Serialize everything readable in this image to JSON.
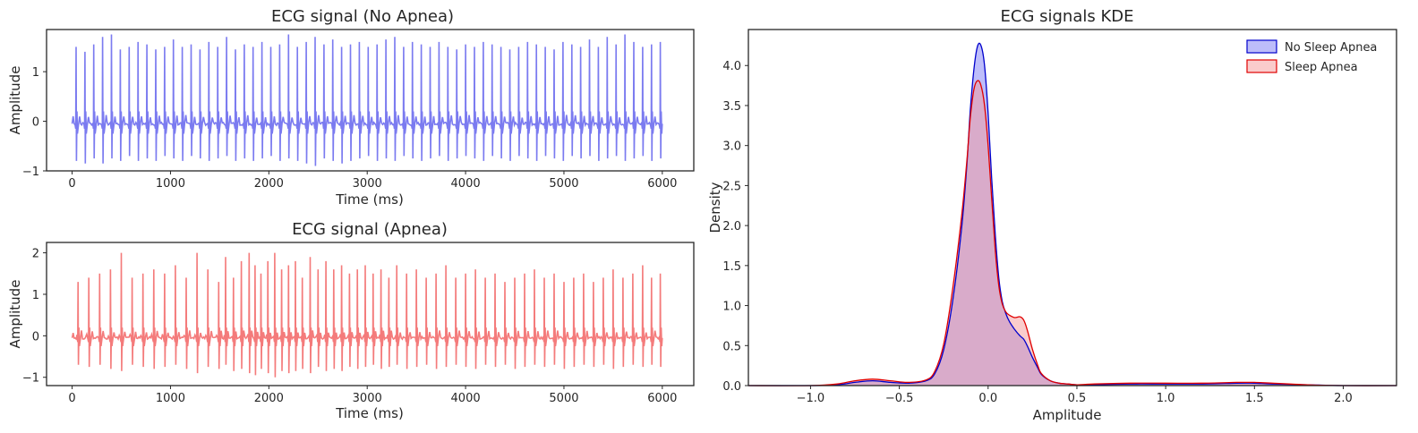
{
  "chart_data": [
    {
      "type": "line",
      "title": "ECG signal (No Apnea)",
      "xlabel": "Time (ms)",
      "ylabel": "Amplitude",
      "xlim": [
        0,
        6000
      ],
      "ylim": [
        -1,
        1.85
      ],
      "xticks": [
        "0",
        "1000",
        "2000",
        "3000",
        "4000",
        "5000",
        "6000"
      ],
      "yticks": [
        "−1",
        "0",
        "1"
      ],
      "series": [
        {
          "color": "#7b7bf0",
          "beat_times": [
            40,
            130,
            220,
            310,
            400,
            490,
            580,
            670,
            760,
            850,
            940,
            1030,
            1120,
            1210,
            1300,
            1390,
            1480,
            1570,
            1660,
            1750,
            1840,
            1930,
            2020,
            2110,
            2200,
            2290,
            2380,
            2470,
            2560,
            2650,
            2740,
            2830,
            2920,
            3010,
            3100,
            3190,
            3280,
            3370,
            3460,
            3550,
            3640,
            3730,
            3820,
            3910,
            4000,
            4090,
            4180,
            4270,
            4360,
            4450,
            4540,
            4630,
            4720,
            4810,
            4900,
            4990,
            5080,
            5170,
            5260,
            5350,
            5440,
            5530,
            5620,
            5710,
            5800,
            5890,
            5980
          ],
          "peaks": [
            1.5,
            1.4,
            1.55,
            1.7,
            1.75,
            1.45,
            1.5,
            1.6,
            1.55,
            1.45,
            1.5,
            1.65,
            1.5,
            1.55,
            1.45,
            1.6,
            1.5,
            1.7,
            1.45,
            1.55,
            1.5,
            1.6,
            1.5,
            1.55,
            1.75,
            1.5,
            1.6,
            1.7,
            1.55,
            1.65,
            1.5,
            1.55,
            1.6,
            1.5,
            1.55,
            1.65,
            1.7,
            1.5,
            1.6,
            1.55,
            1.5,
            1.6,
            1.5,
            1.45,
            1.55,
            1.5,
            1.6,
            1.55,
            1.5,
            1.45,
            1.5,
            1.6,
            1.55,
            1.5,
            1.45,
            1.6,
            1.55,
            1.5,
            1.65,
            1.5,
            1.7,
            1.55,
            1.75,
            1.6,
            1.5,
            1.55,
            1.6
          ],
          "troughs": [
            -0.8,
            -0.85,
            -0.75,
            -0.85,
            -0.75,
            -0.8,
            -0.7,
            -0.8,
            -0.75,
            -0.8,
            -0.7,
            -0.75,
            -0.8,
            -0.7,
            -0.75,
            -0.8,
            -0.75,
            -0.7,
            -0.8,
            -0.75,
            -0.8,
            -0.75,
            -0.7,
            -0.8,
            -0.75,
            -0.8,
            -0.85,
            -0.9,
            -0.75,
            -0.8,
            -0.85,
            -0.8,
            -0.75,
            -0.7,
            -0.8,
            -0.75,
            -0.8,
            -0.7,
            -0.75,
            -0.8,
            -0.75,
            -0.7,
            -0.8,
            -0.75,
            -0.7,
            -0.75,
            -0.8,
            -0.7,
            -0.75,
            -0.8,
            -0.7,
            -0.75,
            -0.8,
            -0.7,
            -0.75,
            -0.8,
            -0.7,
            -0.75,
            -0.7,
            -0.8,
            -0.75,
            -0.7,
            -0.8,
            -0.75,
            -0.7,
            -0.8,
            -0.75
          ]
        }
      ]
    },
    {
      "type": "line",
      "title": "ECG signal (Apnea)",
      "xlabel": "Time (ms)",
      "ylabel": "Amplitude",
      "xlim": [
        0,
        6000
      ],
      "ylim": [
        -1.2,
        2.25
      ],
      "xticks": [
        "0",
        "1000",
        "2000",
        "3000",
        "4000",
        "5000",
        "6000"
      ],
      "yticks": [
        "−1",
        "0",
        "1",
        "2"
      ],
      "series": [
        {
          "color": "#f47b7b",
          "beat_times": [
            60,
            170,
            280,
            390,
            500,
            610,
            720,
            830,
            940,
            1050,
            1160,
            1270,
            1380,
            1490,
            1560,
            1640,
            1720,
            1800,
            1860,
            1920,
            1990,
            2060,
            2130,
            2200,
            2270,
            2340,
            2420,
            2500,
            2580,
            2660,
            2740,
            2820,
            2900,
            2980,
            3060,
            3140,
            3220,
            3300,
            3400,
            3500,
            3600,
            3700,
            3800,
            3900,
            4000,
            4100,
            4200,
            4300,
            4400,
            4500,
            4600,
            4700,
            4800,
            4900,
            5000,
            5100,
            5200,
            5300,
            5400,
            5500,
            5600,
            5700,
            5800,
            5890,
            5980
          ],
          "peaks": [
            1.3,
            1.4,
            1.5,
            1.6,
            2.0,
            1.4,
            1.5,
            1.6,
            1.5,
            1.7,
            1.4,
            2.0,
            1.6,
            1.3,
            1.9,
            1.4,
            1.8,
            2.0,
            1.7,
            1.5,
            1.8,
            2.0,
            1.6,
            1.7,
            1.8,
            1.4,
            1.9,
            1.6,
            1.8,
            1.6,
            1.7,
            1.5,
            1.6,
            1.7,
            1.5,
            1.6,
            1.4,
            1.7,
            1.5,
            1.6,
            1.4,
            1.5,
            1.7,
            1.4,
            1.5,
            1.6,
            1.4,
            1.5,
            1.3,
            1.4,
            1.5,
            1.6,
            1.4,
            1.5,
            1.3,
            1.4,
            1.5,
            1.3,
            1.4,
            1.6,
            1.4,
            1.5,
            1.7,
            1.4,
            1.5
          ],
          "troughs": [
            -0.7,
            -0.75,
            -0.7,
            -0.8,
            -0.85,
            -0.7,
            -0.75,
            -0.8,
            -0.75,
            -0.7,
            -0.8,
            -0.9,
            -0.75,
            -0.8,
            -0.7,
            -0.85,
            -0.8,
            -0.9,
            -0.95,
            -0.8,
            -0.9,
            -1.0,
            -0.85,
            -0.9,
            -0.85,
            -0.8,
            -0.9,
            -0.75,
            -0.85,
            -0.8,
            -0.85,
            -0.75,
            -0.8,
            -0.75,
            -0.7,
            -0.8,
            -0.75,
            -0.7,
            -0.8,
            -0.75,
            -0.7,
            -0.8,
            -0.75,
            -0.7,
            -0.75,
            -0.8,
            -0.7,
            -0.75,
            -0.7,
            -0.8,
            -0.75,
            -0.7,
            -0.75,
            -0.7,
            -0.8,
            -0.75,
            -0.7,
            -0.75,
            -0.7,
            -0.8,
            -0.75,
            -0.7,
            -0.75,
            -0.7,
            -0.75
          ]
        }
      ]
    },
    {
      "type": "area",
      "title": "ECG signals KDE",
      "xlabel": "Amplitude",
      "ylabel": "Density",
      "xlim": [
        -1.35,
        2.3
      ],
      "ylim": [
        0,
        4.45
      ],
      "xticks": [
        "−1.0",
        "−0.5",
        "0.0",
        "0.5",
        "1.0",
        "1.5",
        "2.0"
      ],
      "yticks": [
        "0.0",
        "0.5",
        "1.0",
        "1.5",
        "2.0",
        "2.5",
        "3.0",
        "3.5",
        "4.0"
      ],
      "legend": "top-right",
      "series": [
        {
          "name": "No Sleep Apnea",
          "color": "#0000cc",
          "fill": "#7b7bf5",
          "x": [
            -1.35,
            -1.0,
            -0.85,
            -0.75,
            -0.65,
            -0.55,
            -0.45,
            -0.35,
            -0.3,
            -0.25,
            -0.2,
            -0.15,
            -0.12,
            -0.1,
            -0.08,
            -0.06,
            -0.04,
            -0.02,
            0.0,
            0.02,
            0.04,
            0.06,
            0.08,
            0.1,
            0.12,
            0.15,
            0.18,
            0.2,
            0.22,
            0.25,
            0.28,
            0.3,
            0.35,
            0.4,
            0.45,
            0.5,
            0.6,
            0.8,
            1.0,
            1.2,
            1.4,
            1.5,
            1.6,
            1.8,
            2.0,
            2.3
          ],
          "y": [
            0,
            0,
            0.01,
            0.04,
            0.06,
            0.04,
            0.03,
            0.06,
            0.15,
            0.45,
            1.05,
            1.95,
            2.75,
            3.45,
            3.95,
            4.24,
            4.25,
            4.0,
            3.4,
            2.6,
            1.9,
            1.35,
            1.05,
            0.9,
            0.8,
            0.7,
            0.62,
            0.58,
            0.5,
            0.35,
            0.22,
            0.14,
            0.06,
            0.03,
            0.02,
            0.01,
            0.01,
            0.02,
            0.02,
            0.02,
            0.03,
            0.03,
            0.02,
            0.01,
            0,
            0
          ]
        },
        {
          "name": "Sleep Apnea",
          "color": "#e00000",
          "fill": "#f59a9a",
          "x": [
            -1.35,
            -1.0,
            -0.85,
            -0.75,
            -0.65,
            -0.55,
            -0.45,
            -0.35,
            -0.3,
            -0.25,
            -0.2,
            -0.15,
            -0.12,
            -0.1,
            -0.08,
            -0.06,
            -0.04,
            -0.02,
            0.0,
            0.02,
            0.04,
            0.06,
            0.08,
            0.1,
            0.12,
            0.15,
            0.18,
            0.2,
            0.22,
            0.25,
            0.28,
            0.3,
            0.35,
            0.4,
            0.45,
            0.5,
            0.6,
            0.8,
            1.0,
            1.2,
            1.4,
            1.5,
            1.6,
            1.8,
            2.0,
            2.3
          ],
          "y": [
            0,
            0,
            0.02,
            0.06,
            0.08,
            0.06,
            0.04,
            0.07,
            0.18,
            0.52,
            1.2,
            2.1,
            2.8,
            3.35,
            3.7,
            3.81,
            3.75,
            3.5,
            3.0,
            2.35,
            1.7,
            1.25,
            1.02,
            0.92,
            0.88,
            0.85,
            0.86,
            0.82,
            0.7,
            0.45,
            0.25,
            0.15,
            0.06,
            0.03,
            0.02,
            0.01,
            0.02,
            0.03,
            0.03,
            0.03,
            0.04,
            0.04,
            0.03,
            0.01,
            0,
            0
          ]
        }
      ]
    }
  ]
}
